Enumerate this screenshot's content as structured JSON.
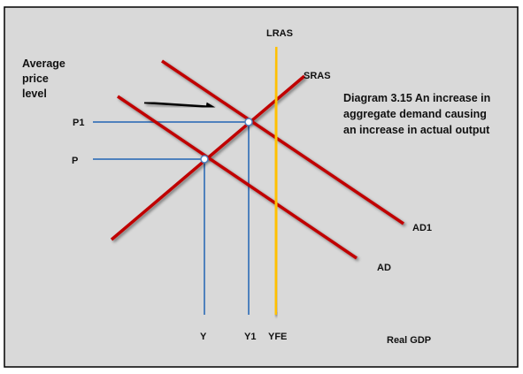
{
  "diagram": {
    "caption_lines": [
      "Diagram 3.15 An increase in",
      "aggregate demand causing",
      "an increase in actual output"
    ],
    "y_axis_label_lines": [
      "Average",
      "price",
      "level"
    ],
    "x_axis_label": "Real GDP",
    "curves": {
      "lras": "LRAS",
      "sras": "SRAS",
      "ad": "AD",
      "ad1": "AD1"
    },
    "price_labels": {
      "p": "P",
      "p1": "P1"
    },
    "output_labels": {
      "y": "Y",
      "y1": "Y1",
      "yfe": "YFE"
    },
    "colors": {
      "background": "#d9d9d9",
      "curve": "#c00000",
      "lras": "#ffc000",
      "guide": "#4f81bd",
      "axis": "#000000"
    }
  }
}
